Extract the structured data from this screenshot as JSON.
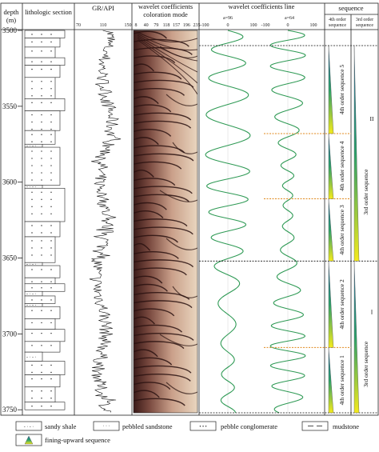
{
  "depth_axis": {
    "title": "depth",
    "unit": "(m)",
    "ticks": [
      "3500",
      "3550",
      "3600",
      "3650",
      "3700",
      "3750"
    ]
  },
  "columns": {
    "lithology": "lithologic section",
    "gr": "GR/API",
    "gr_ticks": [
      "70",
      "110",
      "150"
    ],
    "wavelet_coloration": "wavelet coefficients coloration mode",
    "wavelet_ticks": [
      "8",
      "40",
      "79",
      "118",
      "157",
      "196",
      "235"
    ],
    "wavelet_line": "wavelet coefficients line",
    "a96_label": "a=96",
    "a96_ticks": [
      "-100",
      "0",
      "100"
    ],
    "a64_label": "a=64",
    "a64_ticks": [
      "-100",
      "0",
      "100"
    ],
    "sequence": "sequence",
    "fourth_order_header": "4th order sequence",
    "third_order_header": "3rd order sequence"
  },
  "sequences": {
    "fourth_order": [
      {
        "label": "4th order sequence 5",
        "top": 3510,
        "bottom": 3568
      },
      {
        "label": "4th order sequence 4",
        "top": 3568,
        "bottom": 3611
      },
      {
        "label": "4th order sequence 3",
        "top": 3611,
        "bottom": 3652
      },
      {
        "label": "4th order sequence 2",
        "top": 3652,
        "bottom": 3709
      },
      {
        "label": "4th order sequence 1",
        "top": 3709,
        "bottom": 3752
      }
    ],
    "third_order": [
      {
        "label": "3rd order sequence",
        "roman": "II",
        "top": 3510,
        "bottom": 3652
      },
      {
        "label": "3rd order sequence",
        "roman": "I",
        "top": 3652,
        "bottom": 3752
      }
    ],
    "boundaries_black": [
      3510,
      3652,
      3752
    ],
    "boundaries_orange": [
      3568,
      3611,
      3709
    ]
  },
  "lithology_layers": [
    {
      "top": 3500,
      "bottom": 3505,
      "type": "pebbled-sandstone"
    },
    {
      "top": 3505,
      "bottom": 3511,
      "type": "pebbled-sandstone"
    },
    {
      "top": 3511,
      "bottom": 3518,
      "type": "pebbled-sandstone"
    },
    {
      "top": 3518,
      "bottom": 3523,
      "type": "pebbled-sandstone"
    },
    {
      "top": 3523,
      "bottom": 3531,
      "type": "pebbled-sandstone"
    },
    {
      "top": 3531,
      "bottom": 3545,
      "type": "pebbled-sandstone"
    },
    {
      "top": 3545,
      "bottom": 3553,
      "type": "pebbled-sandstone"
    },
    {
      "top": 3553,
      "bottom": 3566,
      "type": "pebbled-sandstone"
    },
    {
      "top": 3566,
      "bottom": 3575,
      "type": "pebbled-sandstone"
    },
    {
      "top": 3575,
      "bottom": 3577,
      "type": "sandy-shale"
    },
    {
      "top": 3577,
      "bottom": 3602,
      "type": "pebbled-sandstone"
    },
    {
      "top": 3602,
      "bottom": 3604,
      "type": "sandy-shale"
    },
    {
      "top": 3604,
      "bottom": 3626,
      "type": "pebbled-sandstone"
    },
    {
      "top": 3626,
      "bottom": 3636,
      "type": "pebbled-sandstone"
    },
    {
      "top": 3636,
      "bottom": 3653,
      "type": "pebbled-sandstone"
    },
    {
      "top": 3653,
      "bottom": 3655,
      "type": "sandy-shale"
    },
    {
      "top": 3655,
      "bottom": 3663,
      "type": "pebbled-sandstone"
    },
    {
      "top": 3663,
      "bottom": 3667,
      "type": "pebbled-sandstone"
    },
    {
      "top": 3667,
      "bottom": 3672,
      "type": "pebbled-sandstone"
    },
    {
      "top": 3672,
      "bottom": 3675,
      "type": "sandy-shale"
    },
    {
      "top": 3675,
      "bottom": 3680,
      "type": "pebbled-sandstone"
    },
    {
      "top": 3680,
      "bottom": 3682,
      "type": "sandy-shale"
    },
    {
      "top": 3682,
      "bottom": 3690,
      "type": "pebbled-sandstone"
    },
    {
      "top": 3690,
      "bottom": 3697,
      "type": "pebbled-sandstone"
    },
    {
      "top": 3697,
      "bottom": 3705,
      "type": "pebbled-sandstone"
    },
    {
      "top": 3705,
      "bottom": 3712,
      "type": "pebbled-sandstone"
    },
    {
      "top": 3712,
      "bottom": 3718,
      "type": "sandy-shale"
    },
    {
      "top": 3718,
      "bottom": 3727,
      "type": "pebbled-sandstone"
    },
    {
      "top": 3727,
      "bottom": 3735,
      "type": "pebbled-sandstone"
    },
    {
      "top": 3735,
      "bottom": 3745,
      "type": "pebbled-sandstone"
    },
    {
      "top": 3745,
      "bottom": 3750,
      "type": "pebbled-sandstone"
    }
  ],
  "legend": [
    {
      "symbol": "sandy-shale",
      "label": "sandy shale"
    },
    {
      "symbol": "pebbled-sandstone",
      "label": "pebbled sandstone"
    },
    {
      "symbol": "pebble-conglomerate",
      "label": "pebble conglomerate"
    },
    {
      "symbol": "mudstone",
      "label": "mudstone"
    },
    {
      "symbol": "triangle",
      "label": "fining-upward sequence"
    }
  ],
  "colors": {
    "curve_green": "#2f9a55",
    "boundary_orange": "#e08a1e",
    "triangle_top": "#1f6aa8",
    "triangle_mid": "#2aa06a",
    "triangle_bottom": "#f4ea1c"
  }
}
